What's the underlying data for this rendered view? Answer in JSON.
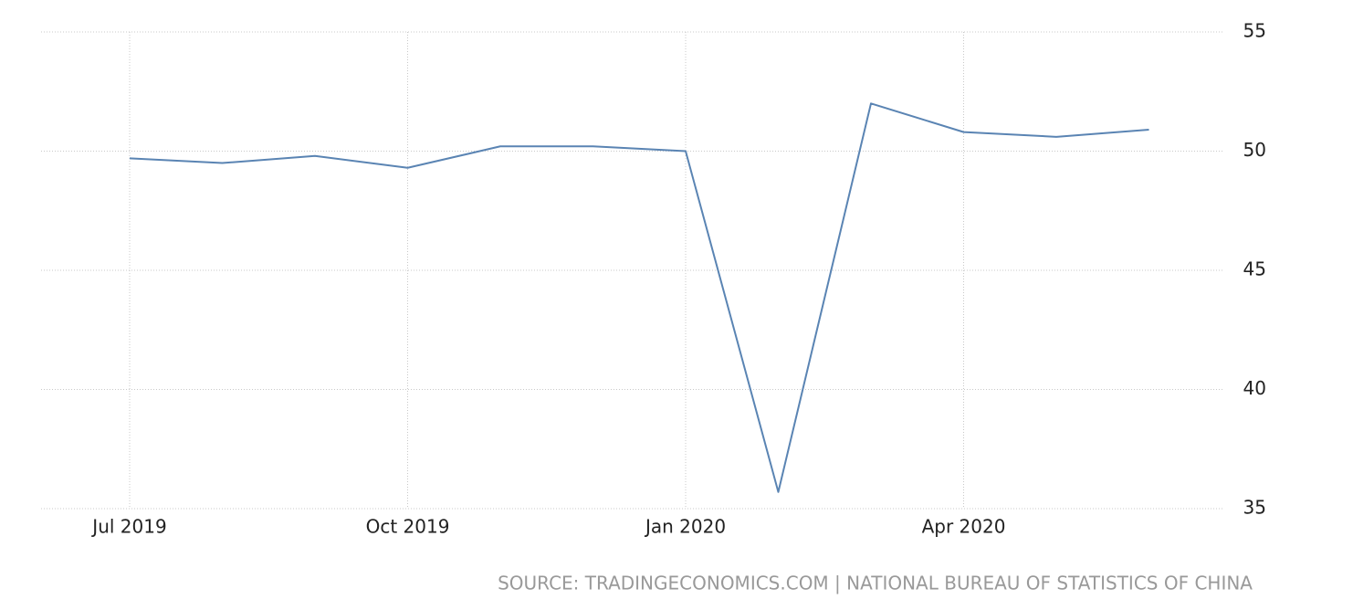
{
  "chart_data": {
    "type": "line",
    "categories": [
      "Jul 2019",
      null,
      null,
      "Oct 2019",
      null,
      null,
      "Jan 2020",
      null,
      null,
      "Apr 2020",
      null,
      null
    ],
    "series": [
      {
        "color": "#5a84b3",
        "values": [
          49.7,
          49.5,
          49.8,
          49.3,
          50.2,
          50.2,
          50.0,
          35.7,
          52.0,
          50.8,
          50.6,
          50.9
        ]
      }
    ],
    "ylim": [
      35,
      55
    ],
    "yticks": [
      35,
      40,
      45,
      50,
      55
    ],
    "grid": true,
    "source": "SOURCE: TRADINGECONOMICS.COM | NATIONAL BUREAU OF STATISTICS OF CHINA"
  }
}
